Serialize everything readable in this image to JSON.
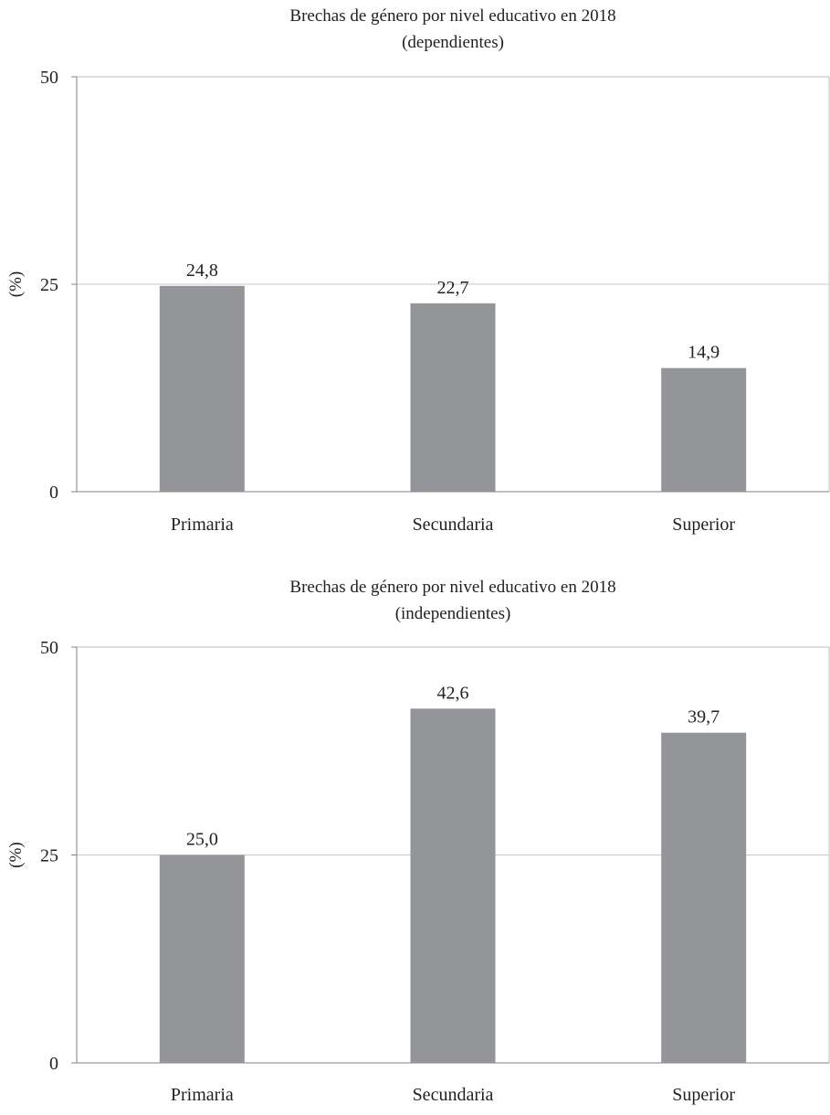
{
  "colors": {
    "bar": "#939598",
    "axis": "#808080",
    "grid": "#c8c8c8",
    "frame": "#bdbdbd",
    "text": "#231f20"
  },
  "chart_data": [
    {
      "type": "bar",
      "title": "Brechas de género por nivel educativo en 2018",
      "subtitle": "(dependientes)",
      "xlabel": "",
      "ylabel": "(%)",
      "categories": [
        "Primaria",
        "Secundaria",
        "Superior"
      ],
      "values": [
        24.8,
        22.7,
        14.9
      ],
      "data_labels": [
        "24,8",
        "22,7",
        "14,9"
      ],
      "ylim": [
        0,
        50
      ],
      "yticks": [
        0,
        25,
        50
      ],
      "ytick_labels": [
        "0",
        "25",
        "50"
      ],
      "grid": true,
      "legend": "none"
    },
    {
      "type": "bar",
      "title": "Brechas de género por nivel educativo en 2018",
      "subtitle": "(independientes)",
      "xlabel": "",
      "ylabel": "(%)",
      "categories": [
        "Primaria",
        "Secundaria",
        "Superior"
      ],
      "values": [
        25.0,
        42.6,
        39.7
      ],
      "data_labels": [
        "25,0",
        "42,6",
        "39,7"
      ],
      "ylim": [
        0,
        50
      ],
      "yticks": [
        0,
        25,
        50
      ],
      "ytick_labels": [
        "0",
        "25",
        "50"
      ],
      "grid": true,
      "legend": "none"
    }
  ]
}
